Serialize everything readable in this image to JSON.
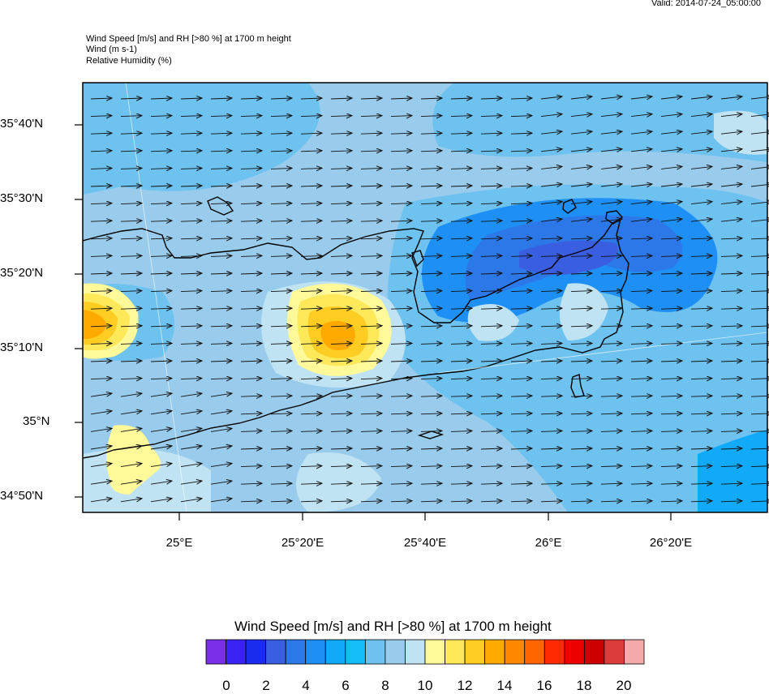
{
  "header": {
    "valid": "Valid: 2014-07-24_05:00:00",
    "title_lines": [
      "Wind Speed [m/s] and RH [>80 %] at 1700 m height",
      "Wind   (m s-1)",
      "Relative Humidity   (%)"
    ]
  },
  "map": {
    "lat_labels": [
      "35°40'N",
      "35°30'N",
      "35°20'N",
      "35°10'N",
      "35°N",
      "34°50'N"
    ],
    "lon_labels": [
      "25°E",
      "25°20'E",
      "25°40'E",
      "26°E",
      "26°20'E"
    ],
    "wind_direction": "west-to-east",
    "colors": {
      "high_speed_core": "#3a6cdc",
      "light_wind": "#bfe3f3",
      "rh_max": "#f28c00"
    }
  },
  "colorbar": {
    "title": "Wind Speed [m/s] and RH [>80 %] at 1700 m height",
    "colors": [
      "#7a2ee8",
      "#3a22f2",
      "#1a2cf0",
      "#3a5ee0",
      "#2c78e8",
      "#1e90f5",
      "#10aaf8",
      "#14bdf8",
      "#6dc2f0",
      "#99ccec",
      "#bfe3f3",
      "#fff99a",
      "#ffe85a",
      "#ffcc22",
      "#ffaa00",
      "#ff8800",
      "#ff6600",
      "#ff2a00",
      "#ee0000",
      "#cc0000",
      "#dd3c3c",
      "#f5aaaa"
    ],
    "labels": [
      "0",
      "2",
      "4",
      "6",
      "8",
      "10",
      "12",
      "14",
      "16",
      "18",
      "20"
    ]
  }
}
